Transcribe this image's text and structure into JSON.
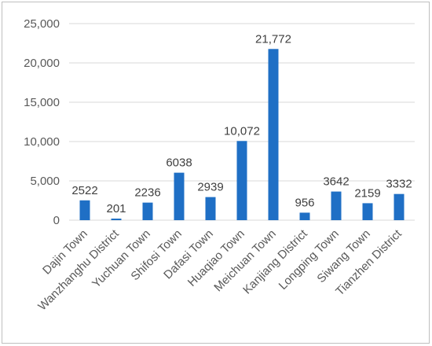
{
  "chart_data": {
    "type": "bar",
    "title": "",
    "xlabel": "",
    "ylabel": "",
    "categories": [
      "Dajin Town",
      "Wanzhanghu District",
      "Yuchuan Town",
      "Shifosi Town",
      "Dafasi Town",
      "Huaqiao Town",
      "Meichuan Town",
      "Kanjiang District",
      "Longping Town",
      "Siwang Town",
      "Tianzhen District"
    ],
    "values": [
      2522,
      201,
      2236,
      6038,
      2939,
      10072,
      21772,
      956,
      3642,
      2159,
      3332
    ],
    "data_labels": [
      "2522",
      "201",
      "2236",
      "6038",
      "2939",
      "10,072",
      "21,772",
      "956",
      "3642",
      "2159",
      "3332"
    ],
    "ylim": [
      0,
      25000
    ],
    "y_ticks": [
      0,
      5000,
      10000,
      15000,
      20000,
      25000
    ],
    "y_tick_labels": [
      "0",
      "5,000",
      "10,000",
      "15,000",
      "20,000",
      "25,000"
    ],
    "grid": true,
    "legend": "none",
    "colors": {
      "bar": "#1f6fc5",
      "grid": "#d9d9d9"
    }
  }
}
